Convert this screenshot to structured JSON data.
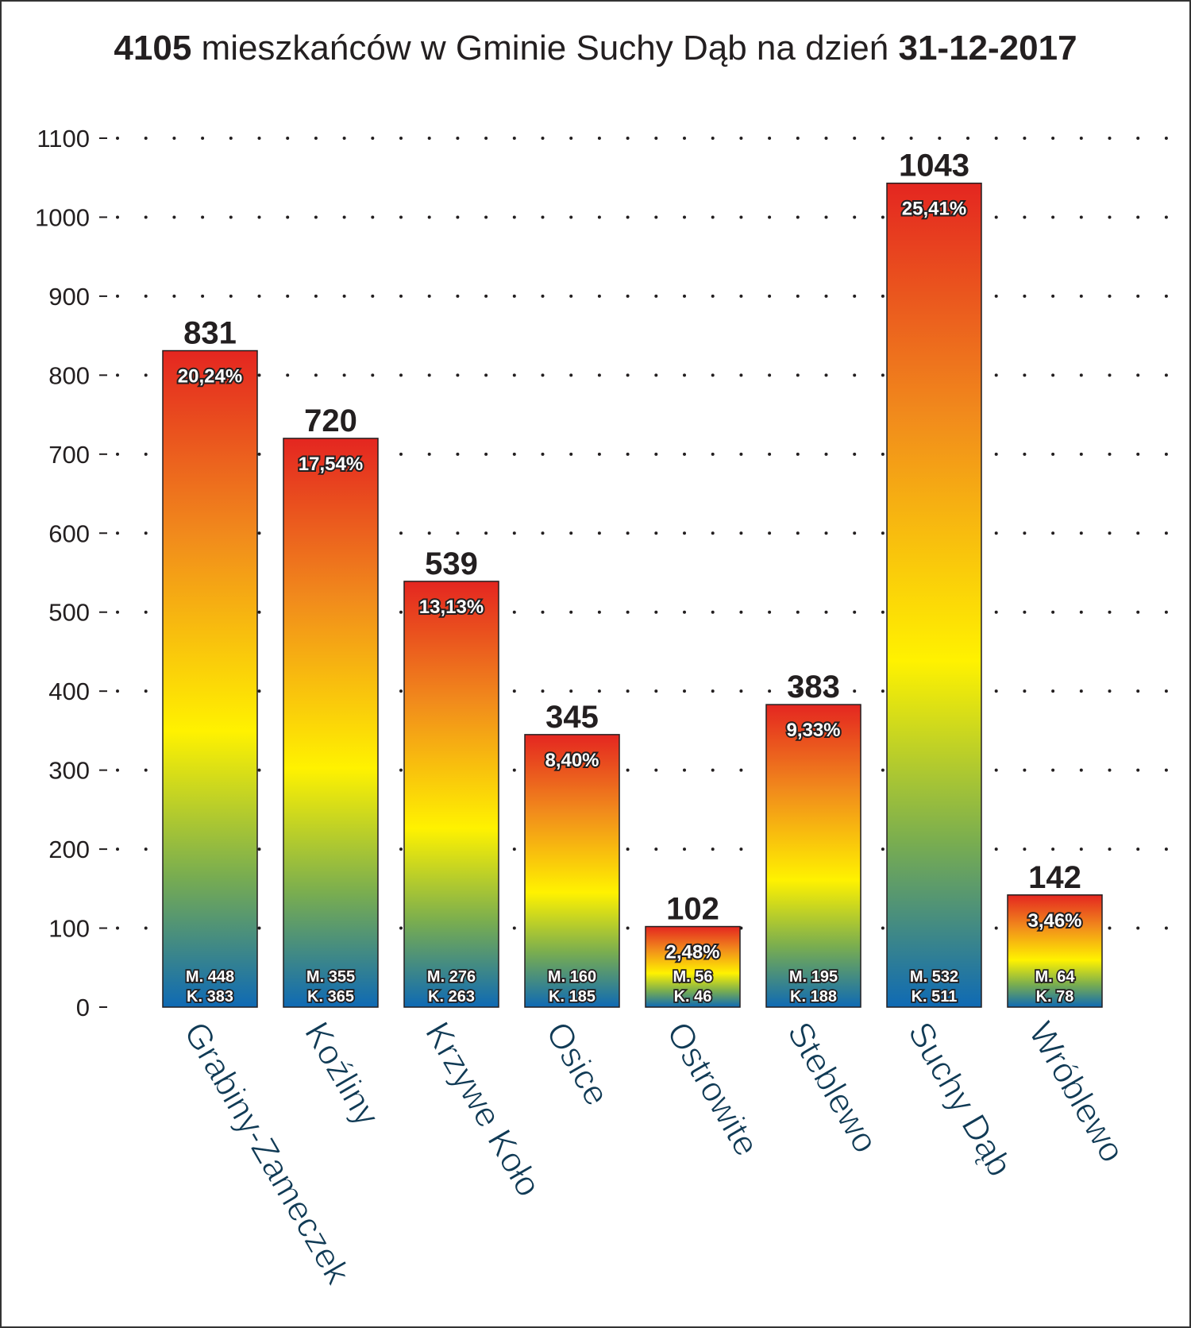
{
  "title": {
    "count": "4105",
    "middle": " mieszkańców w Gminie Suchy Dąb na dzień ",
    "date": "31-12-2017"
  },
  "colors": {
    "gradient_top": "#e42620",
    "gradient_orange": "#f18a1c",
    "gradient_yellow": "#fff200",
    "gradient_green": "#79ad50",
    "gradient_bottom": "#0f6ab4",
    "text": "#231f20",
    "category_label": "#103a55"
  },
  "chart_data": {
    "type": "bar",
    "title": "4105 mieszkańców w Gminie Suchy Dąb na dzień 31-12-2017",
    "categories": [
      "Grabiny-Zameczek",
      "Koźliny",
      "Krzywe Koło",
      "Osice",
      "Ostrowite",
      "Steblewo",
      "Suchy Dąb",
      "Wróblewo"
    ],
    "values": [
      831,
      720,
      539,
      345,
      102,
      383,
      1043,
      142
    ],
    "value_labels": [
      "831",
      "720",
      "539",
      "345",
      "102",
      "383",
      "1043",
      "142"
    ],
    "percent_labels": [
      "20,24%",
      "17,54%",
      "13,13%",
      "8,40%",
      "2,48%",
      "9,33%",
      "25,41%",
      "3,46%"
    ],
    "men_labels": [
      "M. 448",
      "M. 355",
      "M. 276",
      "M. 160",
      "M. 56",
      "M. 195",
      "M. 532",
      "M. 64"
    ],
    "women_labels": [
      "K. 383",
      "K. 365",
      "K. 263",
      "K. 185",
      "K. 46",
      "K. 188",
      "K. 511",
      "K. 78"
    ],
    "men": [
      448,
      355,
      276,
      160,
      56,
      195,
      532,
      64
    ],
    "women": [
      383,
      365,
      263,
      185,
      46,
      188,
      511,
      78
    ],
    "ylim": [
      0,
      1100
    ],
    "yticks": [
      "0",
      "100",
      "200",
      "300",
      "400",
      "500",
      "600",
      "700",
      "800",
      "900",
      "1000",
      "1100"
    ],
    "grid": "dotted horizontal",
    "legend": "none",
    "xlabel": "",
    "ylabel": ""
  }
}
